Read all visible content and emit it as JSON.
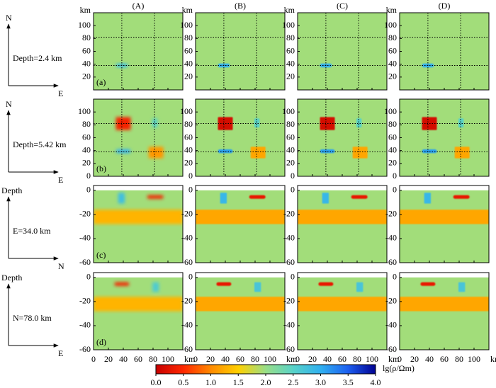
{
  "chart_data": {
    "type": "heatmap",
    "columns": [
      "(A)",
      "(B)",
      "(C)",
      "(D)"
    ],
    "xlim": [
      0,
      120
    ],
    "xticks": [
      0,
      20,
      40,
      60,
      80,
      100
    ],
    "x_unit": "km",
    "rows": [
      {
        "tag": "(a)",
        "axis_up": "N",
        "axis_right": "E",
        "label": "Depth=2.4 km",
        "ylim": [
          0,
          120
        ],
        "yticks": [
          20,
          40,
          60,
          80,
          100
        ],
        "y_unit": "km",
        "guides": {
          "x": [
            38,
            82
          ],
          "y": [
            38,
            82
          ]
        },
        "anomalies": [
          {
            "x": [
              30,
              46
            ],
            "y": [
              35,
              41
            ]
          }
        ],
        "panels": [
          {
            "background": 1.95,
            "values": [
              2.8
            ]
          },
          {
            "background": 1.95,
            "values": [
              3.0
            ]
          },
          {
            "background": 1.95,
            "values": [
              3.0
            ]
          },
          {
            "background": 1.95,
            "values": [
              3.0
            ]
          }
        ]
      },
      {
        "tag": "(b)",
        "axis_up": "N",
        "axis_right": "E",
        "label": "Depth=5.42 km",
        "ylim": [
          0,
          120
        ],
        "yticks": [
          0,
          20,
          40,
          60,
          80,
          100
        ],
        "guides": {
          "x": [
            38,
            82
          ],
          "y": [
            38,
            82
          ]
        },
        "anomalies": [
          {
            "x": [
              30,
              50
            ],
            "y": [
              72,
              92
            ]
          },
          {
            "x": [
              30,
              50
            ],
            "y": [
              36,
              42
            ]
          },
          {
            "x": [
              79,
              86
            ],
            "y": [
              76,
              90
            ]
          },
          {
            "x": [
              74,
              94
            ],
            "y": [
              28,
              46
            ]
          }
        ],
        "panels": [
          {
            "background": 1.95,
            "values": [
              0.4,
              3.0,
              2.5,
              1.1
            ]
          },
          {
            "background": 1.95,
            "values": [
              0.1,
              3.1,
              2.5,
              1.2
            ]
          },
          {
            "background": 1.95,
            "values": [
              0.1,
              3.1,
              2.5,
              1.2
            ]
          },
          {
            "background": 1.95,
            "values": [
              0.1,
              3.1,
              2.5,
              1.2
            ]
          }
        ]
      },
      {
        "tag": "(c)",
        "axis_up": "Depth",
        "axis_right": "N",
        "label": "E=34.0 km",
        "ylim": [
          -60,
          4
        ],
        "yticks": [
          -60,
          -40,
          -20,
          0
        ],
        "model_depth": [
          -60,
          0
        ],
        "anomalies": [
          {
            "x": [
              0,
              120
            ],
            "y": [
              -28,
              -16
            ]
          },
          {
            "x": [
              33,
              42
            ],
            "y": [
              -11,
              -2
            ]
          },
          {
            "x": [
              72,
              94
            ],
            "y": [
              -7,
              -4
            ]
          }
        ],
        "panels": [
          {
            "background": 1.95,
            "values": [
              1.3,
              2.8,
              0.4
            ]
          },
          {
            "background": 1.95,
            "values": [
              1.2,
              2.9,
              0.3
            ]
          },
          {
            "background": 1.95,
            "values": [
              1.2,
              2.9,
              0.3
            ]
          },
          {
            "background": 1.95,
            "values": [
              1.2,
              2.9,
              0.3
            ]
          }
        ]
      },
      {
        "tag": "(d)",
        "axis_up": "Depth",
        "axis_right": "E",
        "label": "N=78.0 km",
        "ylim": [
          -60,
          4
        ],
        "yticks": [
          -60,
          -40,
          -20,
          0
        ],
        "model_depth": [
          -60,
          0
        ],
        "anomalies": [
          {
            "x": [
              0,
              120
            ],
            "y": [
              -28,
              -16
            ]
          },
          {
            "x": [
              28,
              48
            ],
            "y": [
              -7,
              -4
            ]
          },
          {
            "x": [
              79,
              88
            ],
            "y": [
              -12,
              -4
            ]
          }
        ],
        "panels": [
          {
            "background": 1.95,
            "values": [
              1.3,
              0.4,
              2.6
            ]
          },
          {
            "background": 1.95,
            "values": [
              1.2,
              0.3,
              2.7
            ]
          },
          {
            "background": 1.95,
            "values": [
              1.2,
              0.3,
              2.7
            ]
          },
          {
            "background": 1.95,
            "values": [
              1.2,
              0.3,
              2.7
            ]
          }
        ]
      }
    ],
    "colorbar": {
      "label": "lg(ρ/Ωm)",
      "ticks": [
        {
          "value": 0,
          "label": "0.0"
        },
        0.5,
        {
          "value": 1,
          "label": "1.0"
        },
        1.5,
        {
          "value": 2,
          "label": "2.0"
        },
        2.5,
        {
          "value": 3,
          "label": "3.0"
        },
        3.5,
        {
          "value": 4,
          "label": "4.0"
        }
      ],
      "colors": [
        "#c80000",
        "#ff2800",
        "#ff8a00",
        "#ffd000",
        "#98de88",
        "#58d2c8",
        "#30b0f0",
        "#1c5ef0",
        "#000090"
      ]
    }
  }
}
